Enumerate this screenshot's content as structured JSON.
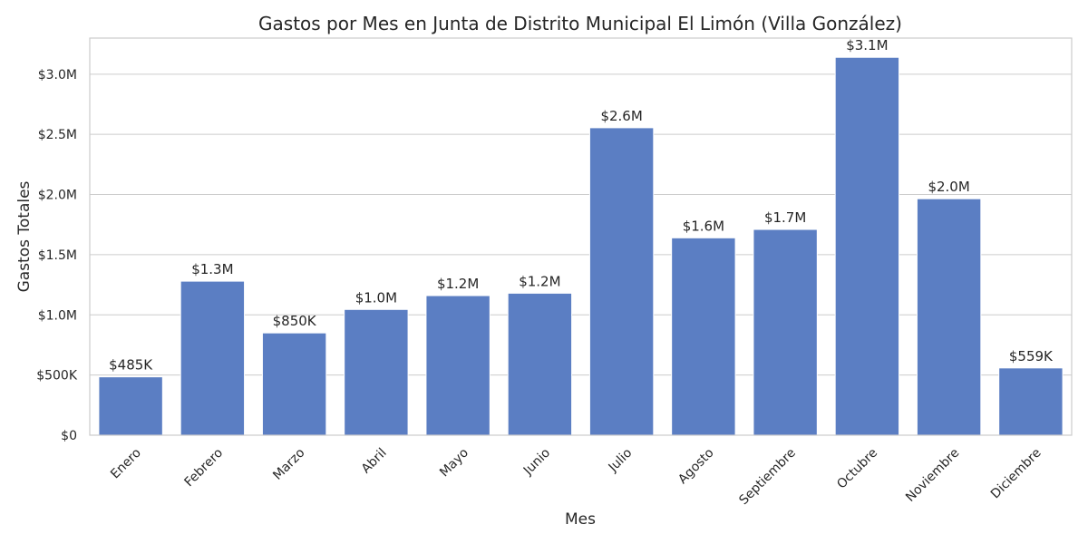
{
  "chart_data": {
    "type": "bar",
    "title": "Gastos por Mes en Junta de Distrito Municipal El Limón (Villa González)",
    "xlabel": "Mes",
    "ylabel": "Gastos Totales",
    "ylim": [
      0,
      3300000
    ],
    "yticks": [
      0,
      500000,
      1000000,
      1500000,
      2000000,
      2500000,
      3000000
    ],
    "ytick_labels": [
      "$0",
      "$500K",
      "$1.0M",
      "$1.5M",
      "$2.0M",
      "$2.5M",
      "$3.0M"
    ],
    "grid": true,
    "color": "#5b7ec3",
    "categories": [
      "Enero",
      "Febrero",
      "Marzo",
      "Abril",
      "Mayo",
      "Junio",
      "Julio",
      "Agosto",
      "Septiembre",
      "Octubre",
      "Noviembre",
      "Diciembre"
    ],
    "values": [
      485000,
      1280000,
      850000,
      1045000,
      1160000,
      1180000,
      2555000,
      1640000,
      1710000,
      3140000,
      1965000,
      559000
    ],
    "data_labels": [
      "$485K",
      "$1.3M",
      "$850K",
      "$1.0M",
      "$1.2M",
      "$1.2M",
      "$2.6M",
      "$1.6M",
      "$1.7M",
      "$3.1M",
      "$2.0M",
      "$559K"
    ]
  }
}
